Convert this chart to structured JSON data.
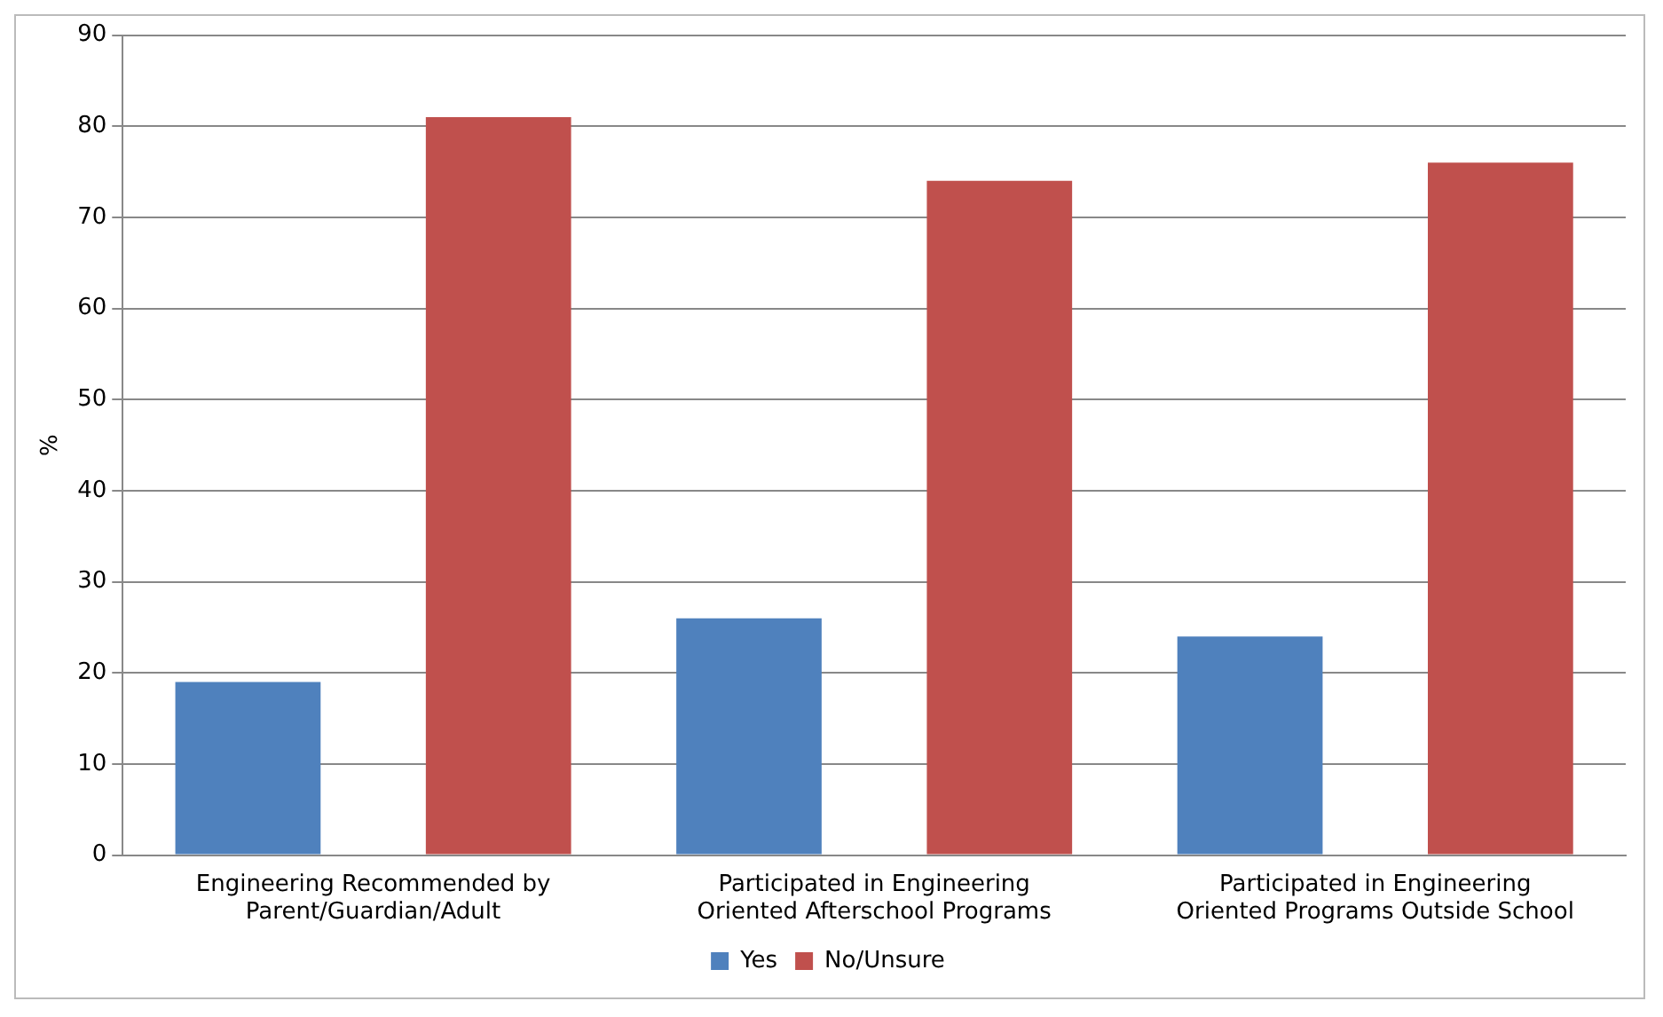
{
  "chart_data": {
    "type": "bar",
    "ylabel": "%",
    "categories": [
      "Engineering Recommended by\nParent/Guardian/Adult",
      "Participated in Engineering\nOriented Afterschool Programs",
      "Participated in Engineering\nOriented Programs Outside School"
    ],
    "series": [
      {
        "name": "Yes",
        "color": "#4f81bd",
        "values": [
          19,
          26,
          24
        ]
      },
      {
        "name": "No/Unsure",
        "color": "#c0504d",
        "values": [
          81,
          74,
          76
        ]
      }
    ],
    "ylim": [
      0,
      90
    ],
    "yticks": [
      0,
      10,
      20,
      30,
      40,
      50,
      60,
      70,
      80,
      90
    ],
    "grid": "y",
    "legend": "bottom"
  }
}
